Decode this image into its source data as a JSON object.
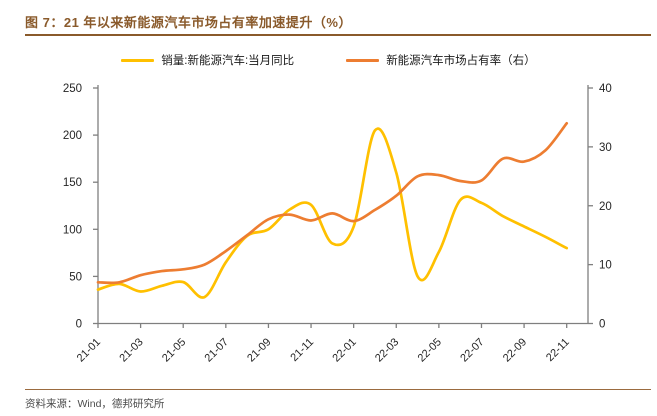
{
  "header": {
    "title": "图 7：21 年以来新能源汽车市场占有率加速提升（%）"
  },
  "footer": {
    "source": "资料来源：Wind，德邦研究所"
  },
  "colors": {
    "accent_brown": "#8a5a2b",
    "axis_gray": "#7f7f7f",
    "tick_label": "#262626",
    "series_yellow": "#FFC000",
    "series_orange": "#ED7D31"
  },
  "chart_data": {
    "type": "line",
    "title": "图 7：21 年以来新能源汽车市场占有率加速提升（%）",
    "smooth": true,
    "grid": false,
    "legend_position": "top",
    "categories": [
      "21-01",
      "21-02",
      "21-03",
      "21-04",
      "21-05",
      "21-06",
      "21-07",
      "21-08",
      "21-09",
      "21-10",
      "21-11",
      "21-12",
      "22-01",
      "22-02",
      "22-03",
      "22-04",
      "22-05",
      "22-06",
      "22-07",
      "22-08",
      "22-09",
      "22-10",
      "22-11"
    ],
    "x_tick_labels": [
      "21-01",
      "21-03",
      "21-05",
      "21-07",
      "21-09",
      "21-11",
      "22-01",
      "22-03",
      "22-05",
      "22-07",
      "22-09",
      "22-11"
    ],
    "x_tick_every": 2,
    "x_pad_right_months": 1,
    "series": [
      {
        "name": "销量:新能源汽车:当月同比",
        "axis": "left",
        "color": "#FFC000",
        "values": [
          36,
          42,
          34,
          40,
          44,
          28,
          65,
          93,
          100,
          121,
          126,
          85,
          103,
          205,
          160,
          50,
          76,
          131,
          128,
          114,
          103,
          92,
          80
        ]
      },
      {
        "name": "新能源汽车市场占有率（右）",
        "axis": "right",
        "color": "#ED7D31",
        "values": [
          7,
          7,
          8.2,
          8.9,
          9.2,
          10,
          12.3,
          15,
          17.7,
          18.5,
          17.5,
          18.7,
          17.4,
          19.3,
          21.7,
          25,
          25.2,
          24.2,
          24.3,
          28,
          27.5,
          29.4,
          34
        ]
      }
    ],
    "left_axis": {
      "min": 0,
      "max": 250,
      "step": 50,
      "ticks": [
        0,
        50,
        100,
        150,
        200,
        250
      ]
    },
    "right_axis": {
      "min": 0,
      "max": 40,
      "step": 10,
      "ticks": [
        0,
        10,
        20,
        30,
        40
      ]
    }
  }
}
